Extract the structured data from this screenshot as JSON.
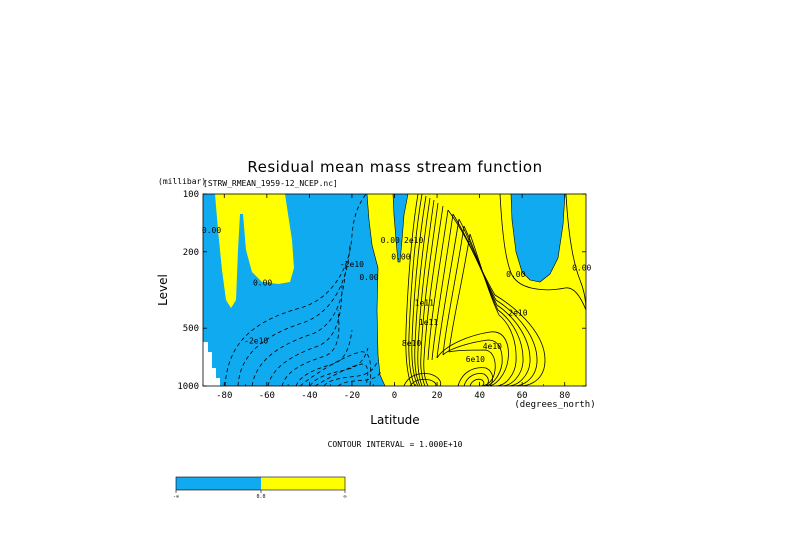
{
  "chart_data": {
    "type": "heatmap",
    "title": "Residual mean mass stream function",
    "subtitle": "[STRW_RMEAN_1959-12_NCEP.nc]",
    "xlabel": "Latitude",
    "xunits": "(degrees_north)",
    "ylabel": "Level",
    "yunits": "(millibar)",
    "xlim": [
      -90,
      90
    ],
    "ylim": [
      1000,
      100
    ],
    "x_ticks": [
      -80,
      -60,
      -40,
      -20,
      0,
      20,
      40,
      60,
      80
    ],
    "x_tick_labels": [
      "-80",
      "-60",
      "-40",
      "-20",
      "0",
      "20",
      "40",
      "60",
      "80"
    ],
    "y_ticks": [
      100,
      200,
      500,
      1000
    ],
    "y_tick_labels": [
      "100",
      "200",
      "500",
      "1000"
    ],
    "y_scale": "log",
    "contour_interval_text": "CONTOUR INTERVAL = 1.000E+10",
    "fill_colors": {
      "negative": "#10aaf0",
      "positive": "#ffff00",
      "missing": "#ffffff"
    },
    "colorbar": {
      "colors": [
        "#10aaf0",
        "#ffff00"
      ],
      "labels": [
        "-∞",
        "0.0",
        "∞"
      ]
    },
    "contour_labels": [
      {
        "text": "0.00",
        "lat": -86,
        "lev": 160
      },
      {
        "text": "0.00",
        "lat": -62,
        "lev": 300
      },
      {
        "text": "0.00",
        "lat": -12,
        "lev": 280
      },
      {
        "text": "0.00",
        "lat": -2,
        "lev": 180
      },
      {
        "text": "0.00",
        "lat": 3,
        "lev": 220
      },
      {
        "text": "0.00",
        "lat": 57,
        "lev": 270
      },
      {
        "text": "0.00",
        "lat": 88,
        "lev": 250
      },
      {
        "text": "-2e10",
        "lat": -20,
        "lev": 240
      },
      {
        "text": "-2e10",
        "lat": -65,
        "lev": 600
      },
      {
        "text": "2e10",
        "lat": 9,
        "lev": 180
      },
      {
        "text": "1e11",
        "lat": 14,
        "lev": 380
      },
      {
        "text": "1e11",
        "lat": 16,
        "lev": 480
      },
      {
        "text": "8e10",
        "lat": 8,
        "lev": 620
      },
      {
        "text": "2e10",
        "lat": 58,
        "lev": 430
      },
      {
        "text": "4e10",
        "lat": 46,
        "lev": 640
      },
      {
        "text": "6e10",
        "lat": 38,
        "lev": 750
      }
    ]
  }
}
